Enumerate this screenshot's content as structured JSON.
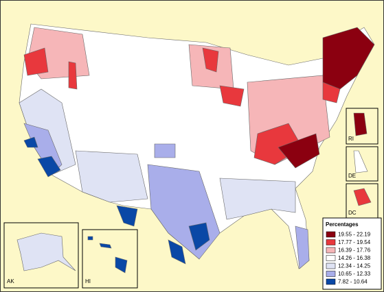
{
  "legend": {
    "title": "Percentages",
    "items": [
      {
        "label": "19.55 - 22.19",
        "color": "#8b0010"
      },
      {
        "label": "17.77 - 19.54",
        "color": "#e8383d"
      },
      {
        "label": "16.39 - 17.76",
        "color": "#f6b6b8"
      },
      {
        "label": "14.26 - 16.38",
        "color": "#ffffff"
      },
      {
        "label": "12.34 - 14.25",
        "color": "#dfe3f4"
      },
      {
        "label": "10.65 - 12.33",
        "color": "#a9aeea"
      },
      {
        "label": "7.82 - 10.64",
        "color": "#0a48a6"
      }
    ]
  },
  "insets": {
    "ak": "AK",
    "hi": "HI",
    "ri": "RI",
    "de": "DE",
    "dc": "DC"
  }
}
